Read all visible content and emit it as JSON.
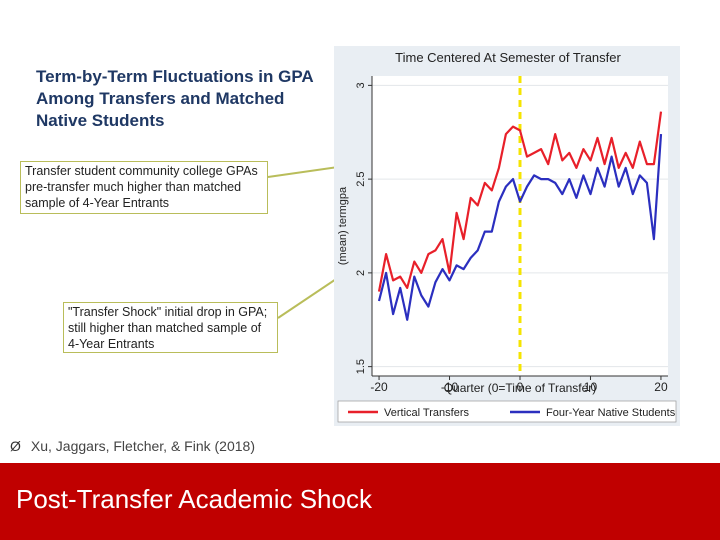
{
  "slide": {
    "title": "Term-by-Term Fluctuations in GPA Among Transfers and Matched Native Students",
    "callout1": "Transfer student community college GPAs pre-transfer much higher than matched sample of 4-Year Entrants",
    "callout2": "\"Transfer Shock\" initial drop in GPA; still higher than matched sample of 4-Year Entrants",
    "citation": "Xu, Jaggars, Fletcher, & Fink (2018)",
    "citation_bullet": "Ø",
    "footer_title": "Post-Transfer Academic Shock"
  },
  "colors": {
    "footer": "#c00000",
    "title": "#1f3864",
    "callout_border": "#b9bd5a",
    "series_red": "#e8202a",
    "series_blue": "#2b2fbf",
    "transfer_line": "#f5e400"
  },
  "chart_data": {
    "type": "line",
    "title": "Time Centered At Semester of Transfer",
    "xlabel": "Quarter (0=Time of Transfer)",
    "ylabel": "(mean) termgpa",
    "xlim": [
      -21,
      21
    ],
    "ylim": [
      1.45,
      3.05
    ],
    "xticks": [
      -20,
      -10,
      0,
      10,
      20
    ],
    "yticks": [
      1.5,
      2,
      2.5,
      3
    ],
    "ytick_labels": [
      "1.5",
      "2",
      "2.5",
      "3"
    ],
    "reference_x": 0,
    "legend_position": "bottom",
    "x": [
      -20,
      -19,
      -18,
      -17,
      -16,
      -15,
      -14,
      -13,
      -12,
      -11,
      -10,
      -9,
      -8,
      -7,
      -6,
      -5,
      -4,
      -3,
      -2,
      -1,
      0,
      1,
      2,
      3,
      4,
      5,
      6,
      7,
      8,
      9,
      10,
      11,
      12,
      13,
      14,
      15,
      16,
      17,
      18,
      19,
      20
    ],
    "series": [
      {
        "name": "Vertical Transfers",
        "values": [
          1.9,
          2.1,
          1.96,
          1.98,
          1.92,
          2.06,
          2.0,
          2.1,
          2.12,
          2.18,
          2.0,
          2.32,
          2.18,
          2.4,
          2.36,
          2.48,
          2.44,
          2.56,
          2.74,
          2.78,
          2.76,
          2.62,
          2.64,
          2.66,
          2.58,
          2.74,
          2.6,
          2.64,
          2.56,
          2.66,
          2.6,
          2.72,
          2.58,
          2.72,
          2.56,
          2.64,
          2.56,
          2.7,
          2.58,
          2.58,
          2.86
        ]
      },
      {
        "name": "Four-Year Native Students",
        "values": [
          1.85,
          2.0,
          1.78,
          1.92,
          1.75,
          1.98,
          1.88,
          1.82,
          1.95,
          2.02,
          1.96,
          2.04,
          2.02,
          2.08,
          2.12,
          2.22,
          2.22,
          2.38,
          2.46,
          2.5,
          2.38,
          2.46,
          2.52,
          2.5,
          2.5,
          2.48,
          2.42,
          2.5,
          2.4,
          2.52,
          2.42,
          2.56,
          2.46,
          2.62,
          2.46,
          2.56,
          2.42,
          2.52,
          2.48,
          2.18,
          2.74
        ]
      }
    ]
  }
}
